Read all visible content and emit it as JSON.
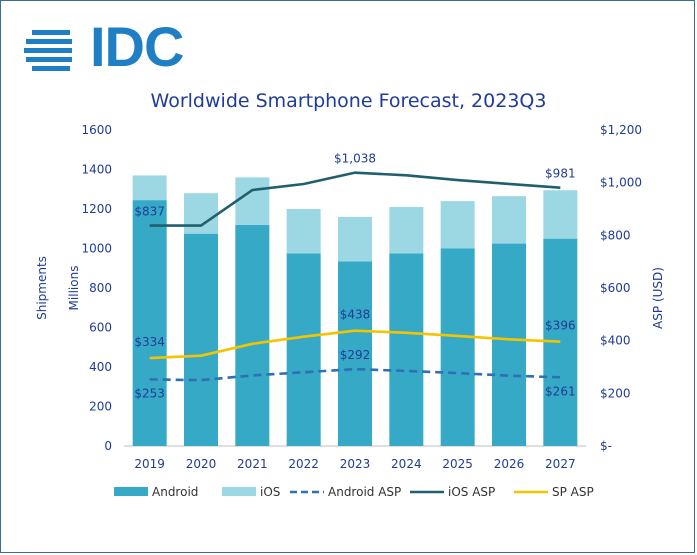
{
  "logo": {
    "text": "IDC",
    "color": "#1f7fc4"
  },
  "chart_data": {
    "type": "bar",
    "title": "Worldwide Smartphone Forecast, 2023Q3",
    "categories": [
      "2019",
      "2020",
      "2021",
      "2022",
      "2023",
      "2024",
      "2025",
      "2026",
      "2027"
    ],
    "stacked": true,
    "series": [
      {
        "name": "Android",
        "type": "bar",
        "axis": "left",
        "color": "#36a9c6",
        "values": [
          1245,
          1075,
          1120,
          975,
          935,
          975,
          1000,
          1025,
          1050
        ]
      },
      {
        "name": "iOS",
        "type": "bar",
        "axis": "left",
        "color": "#9cd8e4",
        "values": [
          125,
          205,
          240,
          225,
          225,
          235,
          240,
          240,
          245
        ]
      },
      {
        "name": "Android ASP",
        "type": "line",
        "axis": "right",
        "color": "#2f6fb6",
        "dash": true,
        "values": [
          253,
          250,
          268,
          280,
          292,
          285,
          277,
          267,
          261
        ]
      },
      {
        "name": "iOS ASP",
        "type": "line",
        "axis": "right",
        "color": "#1f5f6e",
        "values": [
          837,
          837,
          972,
          995,
          1038,
          1028,
          1010,
          995,
          981
        ]
      },
      {
        "name": "SP ASP",
        "type": "line",
        "axis": "right",
        "color": "#f5c400",
        "values": [
          334,
          343,
          388,
          415,
          438,
          430,
          418,
          405,
          396
        ]
      }
    ],
    "left_axis": {
      "title_outer": "Shipments",
      "title_inner": "Millions",
      "min": 0,
      "max": 1600,
      "step": 200,
      "tick_labels": [
        "0",
        "200",
        "400",
        "600",
        "800",
        "1000",
        "1200",
        "1400",
        "1600"
      ]
    },
    "right_axis": {
      "title": "ASP (USD)",
      "min": 0,
      "max": 1200,
      "step": 200,
      "tick_labels": [
        "$-",
        "$200",
        "$400",
        "$600",
        "$800",
        "$1,000",
        "$1,200"
      ]
    },
    "data_labels": [
      {
        "series": "iOS ASP",
        "index": 0,
        "text": "$837"
      },
      {
        "series": "iOS ASP",
        "index": 4,
        "text": "$1,038"
      },
      {
        "series": "iOS ASP",
        "index": 8,
        "text": "$981"
      },
      {
        "series": "SP ASP",
        "index": 0,
        "text": "$334"
      },
      {
        "series": "SP ASP",
        "index": 4,
        "text": "$438"
      },
      {
        "series": "SP ASP",
        "index": 8,
        "text": "$396"
      },
      {
        "series": "Android ASP",
        "index": 0,
        "text": "$253"
      },
      {
        "series": "Android ASP",
        "index": 4,
        "text": "$292"
      },
      {
        "series": "Android ASP",
        "index": 8,
        "text": "$261"
      }
    ],
    "legend": {
      "position": "bottom",
      "items": [
        {
          "name": "Android",
          "kind": "box",
          "color": "#36a9c6"
        },
        {
          "name": "iOS",
          "kind": "box",
          "color": "#9cd8e4"
        },
        {
          "name": "Android ASP",
          "kind": "dash",
          "color": "#2f6fb6"
        },
        {
          "name": "iOS ASP",
          "kind": "line",
          "color": "#1f5f6e"
        },
        {
          "name": "SP ASP",
          "kind": "line",
          "color": "#f5c400"
        }
      ]
    },
    "grid": false
  }
}
